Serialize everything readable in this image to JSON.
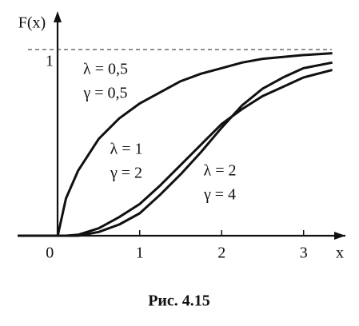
{
  "chart_data": {
    "type": "line",
    "y_label": "F(x)",
    "x_label": "x",
    "caption": "Рис. 4.15",
    "x": [
      -0.49,
      0,
      0.1,
      0.25,
      0.5,
      0.75,
      1,
      1.25,
      1.5,
      1.75,
      2,
      2.25,
      2.5,
      2.75,
      3,
      3.35
    ],
    "series": [
      {
        "color": "#111111",
        "values": [
          0,
          0,
          0.2,
          0.35,
          0.52,
          0.63,
          0.71,
          0.77,
          0.83,
          0.87,
          0.9,
          0.93,
          0.95,
          0.96,
          0.97,
          0.98
        ]
      },
      {
        "color": "#111111",
        "values": [
          0,
          0,
          0,
          0.005,
          0.04,
          0.1,
          0.17,
          0.27,
          0.38,
          0.49,
          0.6,
          0.68,
          0.75,
          0.8,
          0.85,
          0.89
        ]
      },
      {
        "color": "#111111",
        "values": [
          0,
          0,
          0,
          0,
          0.02,
          0.06,
          0.12,
          0.22,
          0.33,
          0.45,
          0.58,
          0.7,
          0.79,
          0.85,
          0.9,
          0.93
        ]
      }
    ],
    "annotations": [
      [
        "λ = 0,5",
        "γ = 0,5"
      ],
      [
        "λ = 1",
        "γ = 2"
      ],
      [
        "λ = 2",
        "γ = 4"
      ]
    ],
    "xlim": [
      -0.49,
      3.52
    ],
    "ylim": [
      0,
      1.18
    ],
    "xticks": [
      0,
      1,
      2,
      3
    ],
    "yticks": [
      1
    ],
    "grid": "dashed"
  }
}
